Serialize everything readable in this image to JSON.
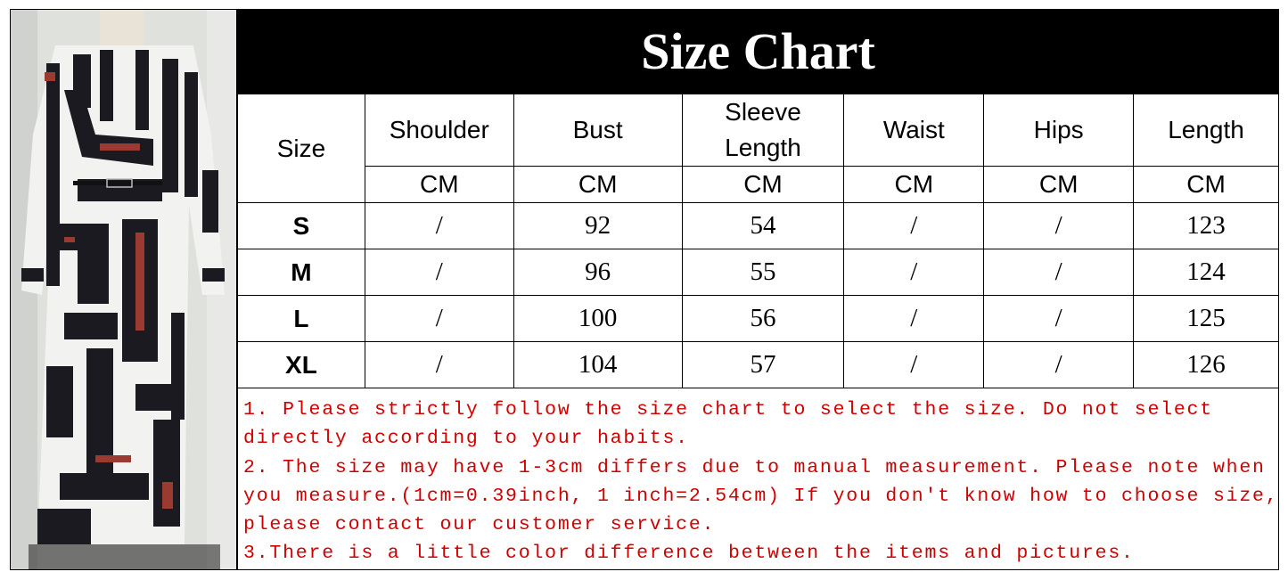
{
  "title": "Size Chart",
  "table": {
    "headers": [
      "Size",
      "Shoulder",
      "Bust",
      "Sleeve Length",
      "Waist",
      "Hips",
      "Length"
    ],
    "units": [
      "CM",
      "CM",
      "CM",
      "CM",
      "CM",
      "CM"
    ],
    "rows": [
      [
        "S",
        "/",
        "92",
        "54",
        "/",
        "/",
        "123"
      ],
      [
        "M",
        "/",
        "96",
        "55",
        "/",
        "/",
        "124"
      ],
      [
        "L",
        "/",
        "100",
        "56",
        "/",
        "/",
        "125"
      ],
      [
        "XL",
        "/",
        "104",
        "57",
        "/",
        "/",
        "126"
      ]
    ]
  },
  "notes": [
    "1. Please strictly follow the size chart to select the size. Do not select",
    "directly according to your habits.",
    "2. The size may have 1-3cm differs due to manual measurement. Please note when",
    "you measure.(1cm=0.39inch, 1 inch=2.54cm) If you don't know how to choose size,",
    "please contact our customer service.",
    "3.There is a little color difference between the items and pictures."
  ],
  "colors": {
    "header_bg": "#000000",
    "notes_text": "#d00000",
    "dress_accent": "#9b3a30"
  }
}
